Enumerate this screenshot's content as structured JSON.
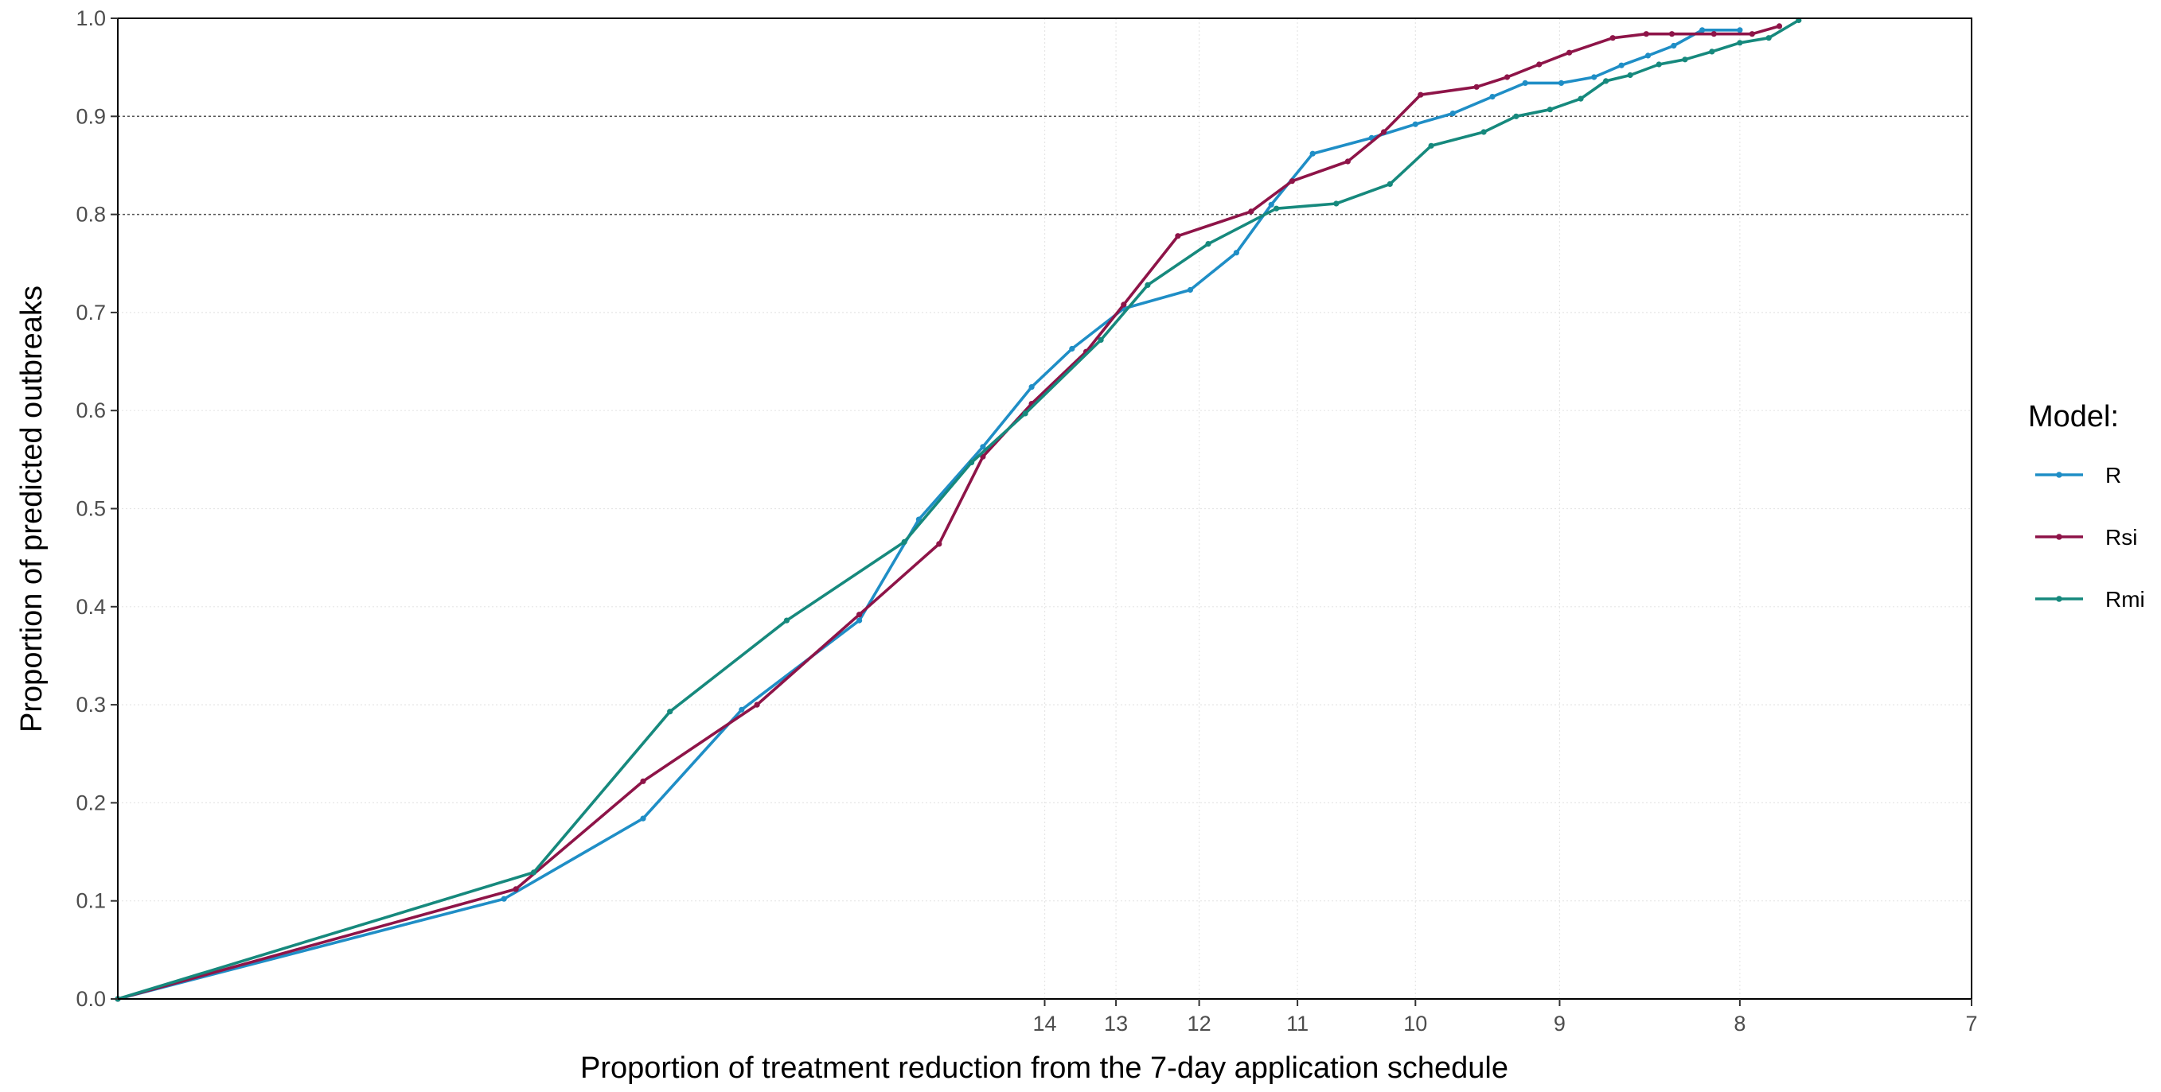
{
  "chart_data": {
    "type": "line",
    "xlabel": "Proportion of treatment reduction from the 7-day application schedule",
    "ylabel": "Proportion of predicted outbreaks",
    "x_axis_note": "reciprocal scale; tick labels show schedule in days (1/x)",
    "x_ticks": [
      14,
      13,
      12,
      11,
      10,
      9,
      8,
      7
    ],
    "xlim": [
      "infinity",
      7
    ],
    "ylim": [
      0,
      1
    ],
    "y_ticks": [
      0.0,
      0.1,
      0.2,
      0.3,
      0.4,
      0.5,
      0.6,
      0.7,
      0.8,
      0.9,
      1.0
    ],
    "y_tick_labels": [
      "0.0",
      "0.1",
      "0.2",
      "0.3",
      "0.4",
      "0.5",
      "0.6",
      "0.7",
      "0.8",
      "0.9",
      "1.0"
    ],
    "reference_lines": [
      0.8,
      0.9
    ],
    "grid": "light dotted major grid; dashed reference lines at 0.8 and 0.9",
    "legend": {
      "title": "Model:",
      "placement": "right"
    },
    "series": [
      {
        "name": "R",
        "color": "#1f8ec6",
        "points": [
          [
            1000000,
            0.0
          ],
          [
            33.6,
            0.102
          ],
          [
            24.7,
            0.184
          ],
          [
            20.8,
            0.295
          ],
          [
            17.5,
            0.386
          ],
          [
            16.2,
            0.489
          ],
          [
            15.0,
            0.563
          ],
          [
            14.2,
            0.624
          ],
          [
            13.6,
            0.663
          ],
          [
            12.9,
            0.704
          ],
          [
            12.1,
            0.723
          ],
          [
            11.6,
            0.761
          ],
          [
            11.25,
            0.81
          ],
          [
            10.86,
            0.862
          ],
          [
            10.35,
            0.878
          ],
          [
            10.0,
            0.892
          ],
          [
            9.72,
            0.903
          ],
          [
            9.44,
            0.92
          ],
          [
            9.22,
            0.934
          ],
          [
            8.99,
            0.934
          ],
          [
            8.79,
            0.94
          ],
          [
            8.63,
            0.952
          ],
          [
            8.48,
            0.962
          ],
          [
            8.34,
            0.972
          ],
          [
            8.19,
            0.988
          ],
          [
            8.0,
            0.988
          ]
        ]
      },
      {
        "name": "Rsi",
        "color": "#8e1448",
        "points": [
          [
            1000000,
            0.0
          ],
          [
            32.6,
            0.112
          ],
          [
            24.7,
            0.222
          ],
          [
            20.3,
            0.3
          ],
          [
            17.5,
            0.392
          ],
          [
            15.8,
            0.464
          ],
          [
            15.0,
            0.553
          ],
          [
            14.2,
            0.607
          ],
          [
            13.4,
            0.66
          ],
          [
            12.9,
            0.708
          ],
          [
            12.24,
            0.778
          ],
          [
            11.45,
            0.803
          ],
          [
            11.05,
            0.834
          ],
          [
            10.55,
            0.854
          ],
          [
            10.25,
            0.884
          ],
          [
            9.96,
            0.922
          ],
          [
            9.55,
            0.93
          ],
          [
            9.34,
            0.94
          ],
          [
            9.13,
            0.953
          ],
          [
            8.94,
            0.965
          ],
          [
            8.68,
            0.98
          ],
          [
            8.49,
            0.984
          ],
          [
            8.35,
            0.984
          ],
          [
            8.13,
            0.984
          ],
          [
            7.94,
            0.984
          ],
          [
            7.81,
            0.992
          ]
        ]
      },
      {
        "name": "Rmi",
        "color": "#16897d",
        "points": [
          [
            1000000,
            0.0
          ],
          [
            31.2,
            0.129
          ],
          [
            23.5,
            0.293
          ],
          [
            19.4,
            0.386
          ],
          [
            16.5,
            0.466
          ],
          [
            15.2,
            0.547
          ],
          [
            14.3,
            0.597
          ],
          [
            13.2,
            0.672
          ],
          [
            12.6,
            0.728
          ],
          [
            11.9,
            0.77
          ],
          [
            11.2,
            0.806
          ],
          [
            10.65,
            0.811
          ],
          [
            10.2,
            0.831
          ],
          [
            9.88,
            0.87
          ],
          [
            9.5,
            0.884
          ],
          [
            9.28,
            0.9
          ],
          [
            9.06,
            0.907
          ],
          [
            8.87,
            0.918
          ],
          [
            8.72,
            0.936
          ],
          [
            8.58,
            0.942
          ],
          [
            8.42,
            0.953
          ],
          [
            8.28,
            0.958
          ],
          [
            8.14,
            0.966
          ],
          [
            8.0,
            0.975
          ],
          [
            7.86,
            0.98
          ],
          [
            7.72,
            0.998
          ]
        ]
      }
    ]
  }
}
